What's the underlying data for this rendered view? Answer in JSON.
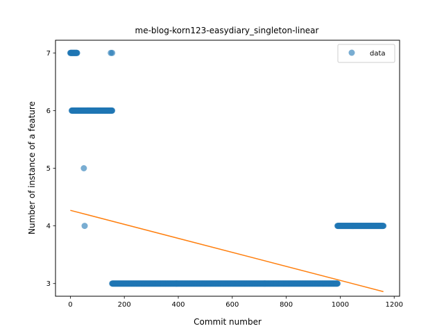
{
  "chart_data": {
    "type": "scatter",
    "title": "me-blog-korn123-easydiary_singleton-linear",
    "xlabel": "Commit number",
    "ylabel": "Number of instance of a feature",
    "xlim": [
      -55,
      1220
    ],
    "ylim": [
      2.78,
      7.22
    ],
    "xticks": [
      0,
      200,
      400,
      600,
      800,
      1000,
      1200
    ],
    "yticks": [
      3,
      4,
      5,
      6,
      7
    ],
    "grid": false,
    "legend": {
      "position": "top-right",
      "entries": [
        "data"
      ]
    },
    "colors": {
      "data": "#1f77b4",
      "fit": "#ff7f0e"
    },
    "series": [
      {
        "name": "data",
        "kind": "scatter",
        "segments": [
          {
            "x_start": 0,
            "x_end": 25,
            "step": 1,
            "y": 7
          },
          {
            "x_start": 5,
            "x_end": 155,
            "step": 1,
            "y": 6
          },
          {
            "x_start": 150,
            "x_end": 155,
            "step": 5,
            "y": 7
          },
          {
            "x_start": 50,
            "x_end": 50,
            "step": 1,
            "y": 5
          },
          {
            "x_start": 53,
            "x_end": 53,
            "step": 1,
            "y": 4
          },
          {
            "x_start": 155,
            "x_end": 990,
            "step": 1,
            "y": 3
          },
          {
            "x_start": 990,
            "x_end": 1160,
            "step": 1,
            "y": 4
          }
        ]
      },
      {
        "kind": "line",
        "x": [
          0,
          1160
        ],
        "y": [
          4.27,
          2.86
        ]
      }
    ]
  }
}
